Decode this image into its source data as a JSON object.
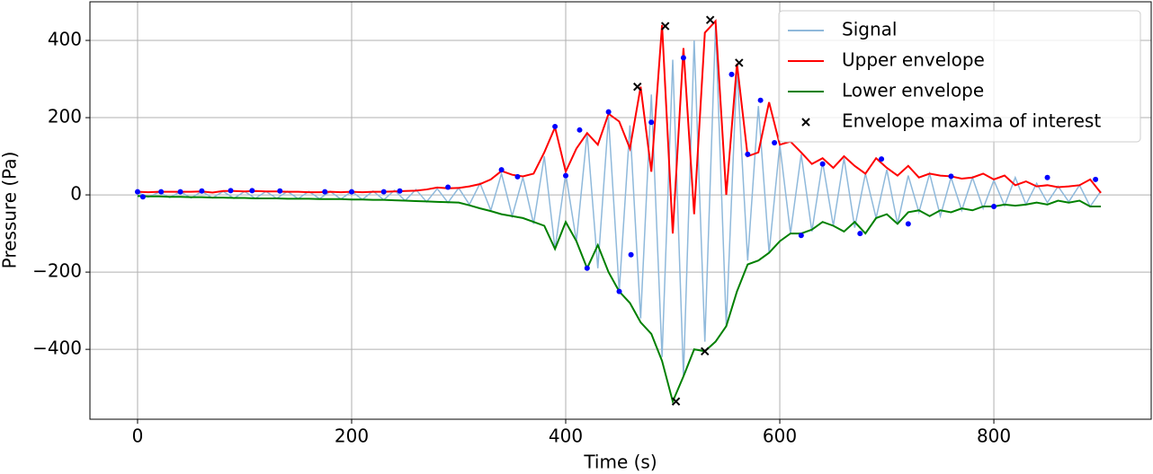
{
  "chart_data": {
    "type": "line",
    "xlabel": "Time (s)",
    "ylabel": "Pressure (Pa)",
    "xlim": [
      -44.5,
      947
    ],
    "ylim": [
      -581,
      500
    ],
    "xticks": [
      0,
      200,
      400,
      600,
      800
    ],
    "yticks": [
      {
        "value": -400,
        "label": "−400"
      },
      {
        "value": -200,
        "label": "−200"
      },
      0,
      200,
      400
    ],
    "grid": true,
    "legend": "upper right",
    "x": [
      0,
      10,
      20,
      30,
      40,
      50,
      60,
      70,
      80,
      90,
      100,
      110,
      120,
      130,
      140,
      150,
      160,
      170,
      180,
      190,
      200,
      210,
      220,
      230,
      240,
      250,
      260,
      270,
      280,
      290,
      300,
      310,
      320,
      330,
      340,
      350,
      360,
      370,
      380,
      390,
      400,
      410,
      420,
      430,
      440,
      450,
      460,
      470,
      480,
      490,
      500,
      510,
      520,
      530,
      540,
      550,
      560,
      570,
      580,
      590,
      600,
      610,
      620,
      630,
      640,
      650,
      660,
      670,
      680,
      690,
      700,
      710,
      720,
      730,
      740,
      750,
      760,
      770,
      780,
      790,
      800,
      810,
      820,
      830,
      840,
      850,
      860,
      870,
      880,
      890,
      900
    ],
    "series": [
      {
        "name": "Signal",
        "color": "#8fb9db",
        "values": [
          6,
          -6,
          7,
          -7,
          8,
          -8,
          9,
          -8,
          9,
          -9,
          9,
          -9,
          9,
          -9,
          9,
          -10,
          9,
          -10,
          9,
          -11,
          9,
          -12,
          10,
          -13,
          12,
          -15,
          14,
          -18,
          16,
          -20,
          18,
          -25,
          30,
          -40,
          55,
          -55,
          45,
          -75,
          100,
          -140,
          55,
          -120,
          160,
          -190,
          200,
          -250,
          180,
          -320,
          260,
          -420,
          350,
          -470,
          400,
          -380,
          440,
          -340,
          330,
          -170,
          230,
          -150,
          130,
          -100,
          105,
          -95,
          85,
          -80,
          95,
          -85,
          55,
          -60,
          65,
          -75,
          50,
          -45,
          55,
          -55,
          45,
          -40,
          45,
          -35,
          38,
          -28,
          45,
          -25,
          30,
          -20,
          22,
          -18,
          25,
          -30,
          10
        ]
      },
      {
        "name": "Upper envelope",
        "color": "#ff0000",
        "values": [
          8,
          7,
          8,
          8,
          8,
          8,
          9,
          6,
          10,
          10,
          9,
          10,
          9,
          9,
          8,
          8,
          7,
          7,
          8,
          7,
          8,
          7,
          8,
          8,
          9,
          10,
          11,
          14,
          19,
          17,
          18,
          22,
          28,
          40,
          62,
          52,
          48,
          55,
          110,
          175,
          60,
          120,
          160,
          130,
          210,
          190,
          120,
          280,
          60,
          440,
          -100,
          380,
          -50,
          420,
          450,
          0,
          340,
          100,
          110,
          240,
          130,
          138,
          110,
          80,
          95,
          70,
          100,
          75,
          55,
          95,
          70,
          50,
          75,
          45,
          55,
          50,
          48,
          42,
          45,
          55,
          40,
          50,
          25,
          35,
          22,
          25,
          20,
          22,
          25,
          40,
          5
        ]
      },
      {
        "name": "Lower envelope",
        "color": "#008000",
        "values": [
          -3,
          -4,
          -4,
          -5,
          -5,
          -6,
          -6,
          -7,
          -7,
          -8,
          -8,
          -9,
          -9,
          -9,
          -10,
          -10,
          -10,
          -11,
          -11,
          -11,
          -12,
          -12,
          -13,
          -13,
          -14,
          -15,
          -16,
          -17,
          -18,
          -19,
          -20,
          -27,
          -35,
          -42,
          -50,
          -55,
          -60,
          -70,
          -80,
          -140,
          -70,
          -120,
          -190,
          -130,
          -200,
          -250,
          -280,
          -330,
          -360,
          -430,
          -535,
          -470,
          -400,
          -405,
          -380,
          -340,
          -250,
          -180,
          -170,
          -150,
          -120,
          -100,
          -100,
          -90,
          -70,
          -80,
          -95,
          -70,
          -100,
          -60,
          -50,
          -75,
          -45,
          -40,
          -55,
          -40,
          -45,
          -35,
          -40,
          -30,
          -30,
          -25,
          -28,
          -25,
          -20,
          -25,
          -15,
          -20,
          -15,
          -30,
          -30
        ]
      }
    ],
    "envelope_points": {
      "color": "#0000ff",
      "x": [
        0,
        5,
        22,
        40,
        60,
        87,
        107,
        133,
        175,
        200,
        230,
        245,
        290,
        340,
        355,
        390,
        400,
        413,
        420,
        440,
        450,
        461,
        480,
        510,
        555,
        570,
        582,
        595,
        620,
        640,
        675,
        695,
        720,
        760,
        800,
        850,
        895
      ],
      "y": [
        8,
        -5,
        8,
        8,
        10,
        11,
        11,
        10,
        8,
        8,
        8,
        10,
        20,
        65,
        47,
        177,
        50,
        168,
        -190,
        215,
        -250,
        -155,
        188,
        355,
        312,
        105,
        245,
        135,
        -105,
        80,
        -100,
        93,
        -75,
        48,
        -30,
        45,
        40
      ]
    },
    "markers": {
      "name": "Envelope maxima of interest",
      "color": "#000000",
      "x": [
        467,
        493,
        535,
        562,
        503,
        530
      ],
      "y": [
        280,
        437,
        453,
        342,
        -535,
        -405
      ]
    }
  }
}
